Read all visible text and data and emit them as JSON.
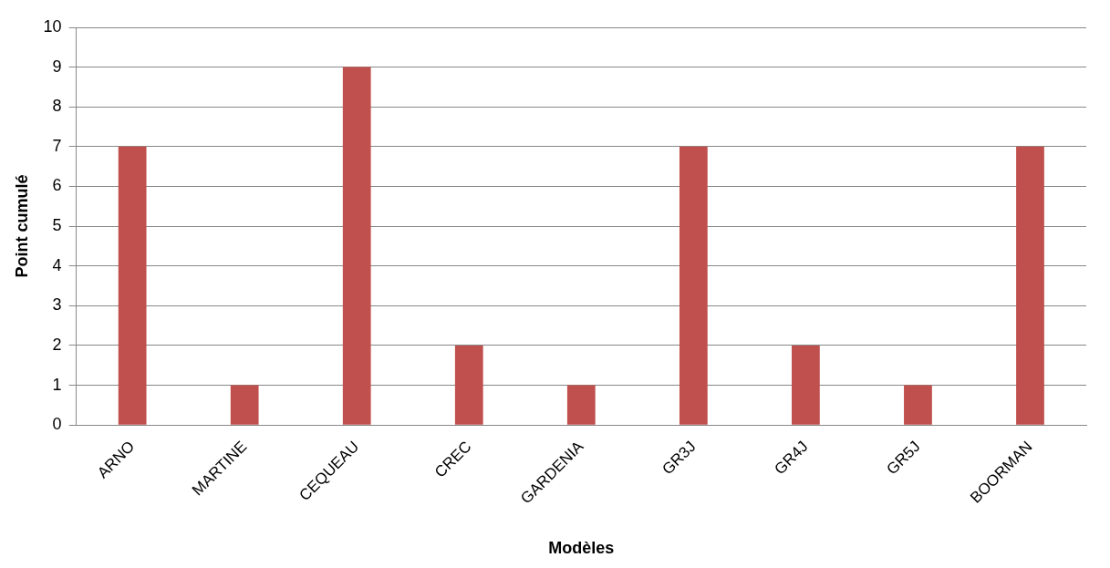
{
  "chart_data": {
    "type": "bar",
    "xlabel": "Modèles",
    "ylabel": "Point cumulé",
    "categories": [
      "ARNO",
      "MARTINE",
      "CEQUEAU",
      "CREC",
      "GARDENIA",
      "GR3J",
      "GR4J",
      "GR5J",
      "BOORMAN"
    ],
    "values": [
      7,
      1,
      9,
      2,
      1,
      7,
      2,
      1,
      7
    ],
    "color": "#c0504d",
    "ylim": [
      0,
      10
    ],
    "yticks": [
      0,
      1,
      2,
      3,
      4,
      5,
      6,
      7,
      8,
      9,
      10
    ],
    "grid": "y",
    "legend": false
  }
}
